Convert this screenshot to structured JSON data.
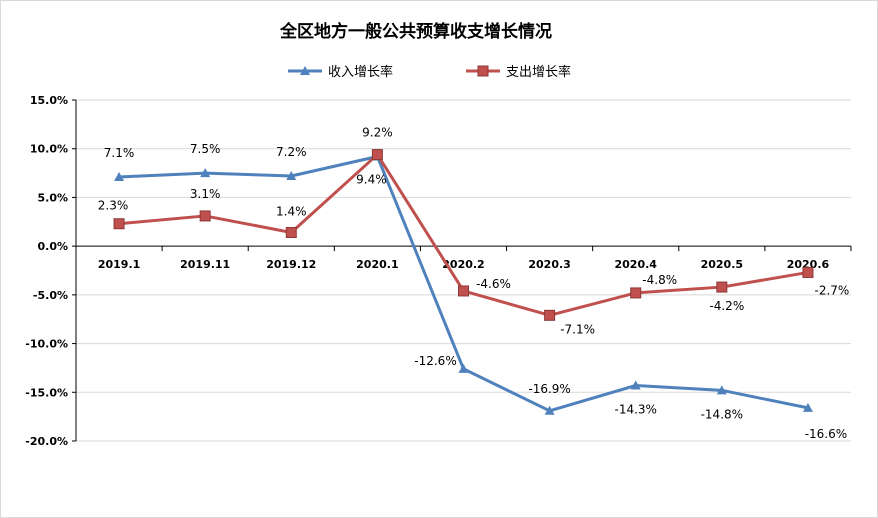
{
  "chart_data": {
    "type": "line",
    "title": "全区地方一般公共预算收支增长情况",
    "categories": [
      "2019.1",
      "2019.11",
      "2019.12",
      "2020.1",
      "2020.2",
      "2020.3",
      "2020.4",
      "2020.5",
      "2020.6"
    ],
    "series": [
      {
        "name": "收入增长率",
        "color": "#4f81bd",
        "marker": "triangle",
        "values": [
          7.1,
          7.5,
          7.2,
          9.2,
          -12.6,
          -16.9,
          -14.3,
          -14.8,
          -16.6
        ],
        "labels": [
          "7.1%",
          "7.5%",
          "7.2%",
          "9.2%",
          "-12.6%",
          "-16.9%",
          "-14.3%",
          "-14.8%",
          "-16.6%"
        ]
      },
      {
        "name": "支出增长率",
        "color": "#c0504d",
        "marker": "square",
        "values": [
          2.3,
          3.1,
          1.4,
          9.4,
          -4.6,
          -7.1,
          -4.8,
          -4.2,
          -2.7
        ],
        "labels": [
          "2.3%",
          "3.1%",
          "1.4%",
          "9.4%",
          "-4.6%",
          "-7.1%",
          "-4.8%",
          "-4.2%",
          "-2.7%"
        ]
      }
    ],
    "yticks": [
      15,
      10,
      5,
      0,
      -5,
      -10,
      -15,
      -20
    ],
    "ytick_labels": [
      "15.0%",
      "10.0%",
      "5.0%",
      "0.0%",
      "-5.0%",
      "-10.0%",
      "-15.0%",
      "-20.0%"
    ],
    "ylim": [
      -20,
      15
    ],
    "grid": true,
    "legend": "top-center"
  }
}
